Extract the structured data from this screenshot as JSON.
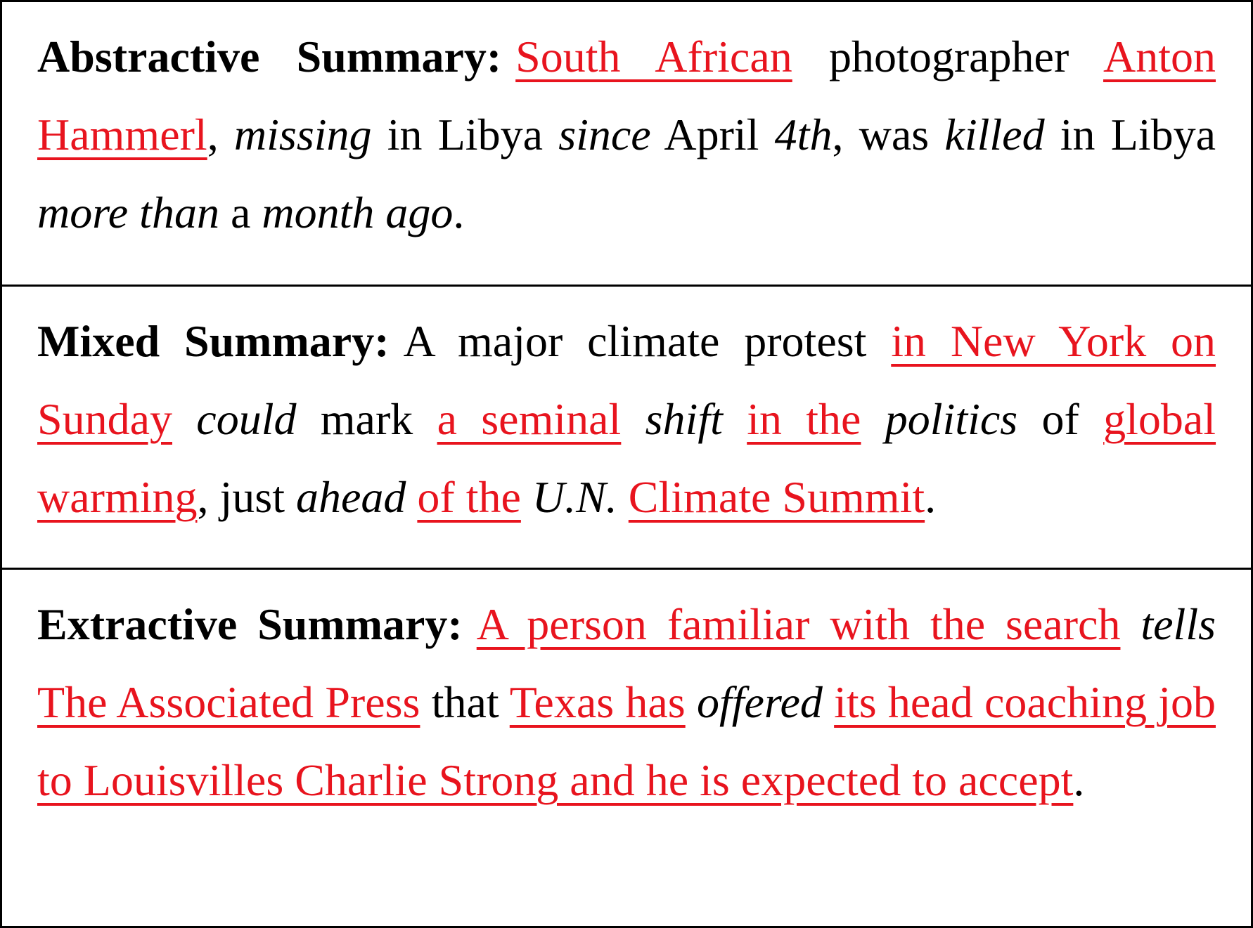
{
  "colors": {
    "highlight": "#e8141e",
    "text": "#000000",
    "border": "#000000"
  },
  "summaries": [
    {
      "label": "Abstractive Summary:",
      "segments": [
        {
          "text": "South African",
          "style": "hl"
        },
        {
          "text": " photographer ",
          "style": "plain"
        },
        {
          "text": "Anton Hammerl",
          "style": "hl"
        },
        {
          "text": ", ",
          "style": "plain"
        },
        {
          "text": "missing",
          "style": "em"
        },
        {
          "text": " in Libya ",
          "style": "plain"
        },
        {
          "text": "since",
          "style": "em"
        },
        {
          "text": " April ",
          "style": "plain"
        },
        {
          "text": "4th",
          "style": "em"
        },
        {
          "text": ", was ",
          "style": "plain"
        },
        {
          "text": "killed",
          "style": "em"
        },
        {
          "text": " in Libya ",
          "style": "plain"
        },
        {
          "text": "more than",
          "style": "em"
        },
        {
          "text": " a ",
          "style": "plain"
        },
        {
          "text": "month ago",
          "style": "em"
        },
        {
          "text": ".",
          "style": "plain"
        }
      ]
    },
    {
      "label": "Mixed Summary:",
      "segments": [
        {
          "text": "A major climate protest ",
          "style": "plain"
        },
        {
          "text": "in New York on Sunday",
          "style": "hl"
        },
        {
          "text": " ",
          "style": "plain"
        },
        {
          "text": "could",
          "style": "em"
        },
        {
          "text": " mark ",
          "style": "plain"
        },
        {
          "text": "a seminal",
          "style": "hl"
        },
        {
          "text": " ",
          "style": "plain"
        },
        {
          "text": "shift",
          "style": "em"
        },
        {
          "text": " ",
          "style": "plain"
        },
        {
          "text": "in the",
          "style": "hl"
        },
        {
          "text": " ",
          "style": "plain"
        },
        {
          "text": "politics",
          "style": "em"
        },
        {
          "text": " of ",
          "style": "plain"
        },
        {
          "text": "global warming",
          "style": "hl"
        },
        {
          "text": ", just ",
          "style": "plain"
        },
        {
          "text": "ahead",
          "style": "em"
        },
        {
          "text": " ",
          "style": "plain"
        },
        {
          "text": "of the",
          "style": "hl"
        },
        {
          "text": " ",
          "style": "plain"
        },
        {
          "text": "U.N.",
          "style": "em"
        },
        {
          "text": " ",
          "style": "plain"
        },
        {
          "text": "Climate Summit",
          "style": "hl"
        },
        {
          "text": ".",
          "style": "plain"
        }
      ]
    },
    {
      "label": "Extractive Summary:",
      "segments": [
        {
          "text": "A person familiar with the search",
          "style": "hl"
        },
        {
          "text": " ",
          "style": "plain"
        },
        {
          "text": "tells",
          "style": "em"
        },
        {
          "text": " ",
          "style": "plain"
        },
        {
          "text": "The Associated Press",
          "style": "hl"
        },
        {
          "text": " that ",
          "style": "plain"
        },
        {
          "text": "Texas has",
          "style": "hl"
        },
        {
          "text": " ",
          "style": "plain"
        },
        {
          "text": "offered",
          "style": "em"
        },
        {
          "text": " ",
          "style": "plain"
        },
        {
          "text": "its head coaching job to Louisvilles Charlie Strong and he is expected to accept",
          "style": "hl"
        },
        {
          "text": ".",
          "style": "plain"
        }
      ]
    }
  ]
}
